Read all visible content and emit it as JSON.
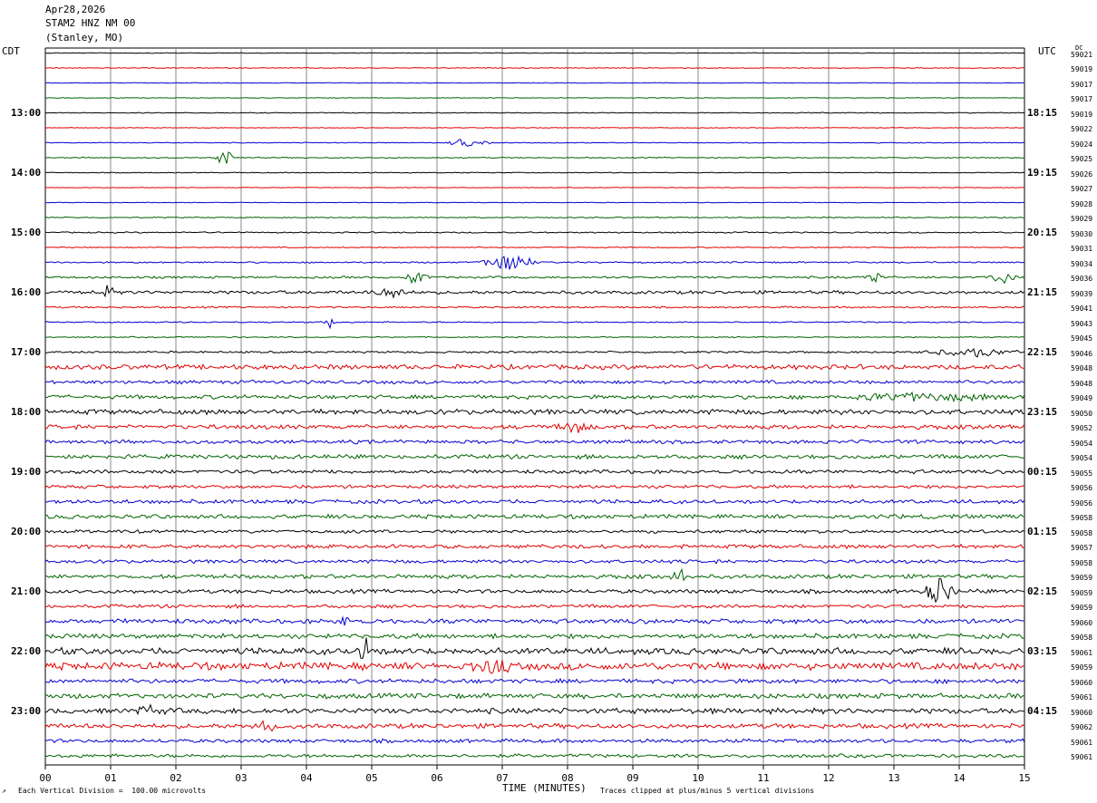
{
  "header": {
    "date": "Apr28,2026",
    "station": "STAM2 HNZ NM 00",
    "location": "(Stanley, MO)"
  },
  "left_zone": "CDT",
  "right_zone": "UTC",
  "dc_label": "DC",
  "footer": {
    "scale_note": "Each Vertical Division =  100.00 microvolts",
    "clip_note": "Traces clipped at plus/minus 5 vertical divisions",
    "corner_mark": "↗"
  },
  "chart_data": {
    "type": "line",
    "title": "",
    "xlabel": "TIME (MINUTES)",
    "xlim": [
      0,
      15
    ],
    "x_ticks": [
      "00",
      "01",
      "02",
      "03",
      "04",
      "05",
      "06",
      "07",
      "08",
      "09",
      "10",
      "11",
      "12",
      "13",
      "14",
      "15"
    ],
    "row_minutes": 15,
    "rows": 48,
    "trace_colors": [
      "#000000",
      "#e00000",
      "#0000d0",
      "#006400"
    ],
    "left_hour_labels": [
      "13:00",
      "14:00",
      "15:00",
      "16:00",
      "17:00",
      "18:00",
      "19:00",
      "20:00",
      "21:00",
      "22:00",
      "23:00"
    ],
    "right_hour_labels": [
      "18:15",
      "19:15",
      "20:15",
      "21:15",
      "22:15",
      "23:15",
      "00:15",
      "01:15",
      "02:15",
      "03:15",
      "04:15"
    ],
    "dc_offsets": [
      "59021",
      "59019",
      "59017",
      "59017",
      "59019",
      "59022",
      "59024",
      "59025",
      "59026",
      "59027",
      "59028",
      "59029",
      "59030",
      "59031",
      "59034",
      "59036",
      "59039",
      "59041",
      "59043",
      "59045",
      "59046",
      "59048",
      "59048",
      "59049",
      "59050",
      "59052",
      "59054",
      "59054",
      "59055",
      "59056",
      "59056",
      "59058",
      "59058",
      "59057",
      "59058",
      "59059",
      "59059",
      "59059",
      "59060",
      "59058",
      "59061",
      "59059",
      "59060",
      "59061",
      "59060",
      "59062",
      "59061",
      "59061"
    ],
    "noise_levels": [
      0.3,
      0.4,
      0.3,
      0.3,
      0.4,
      0.3,
      0.4,
      0.5,
      0.4,
      0.3,
      0.3,
      0.5,
      0.6,
      0.5,
      0.7,
      1.0,
      1.5,
      0.8,
      0.6,
      0.5,
      0.9,
      2.2,
      1.6,
      1.8,
      2.3,
      2.0,
      1.7,
      1.9,
      1.7,
      1.6,
      1.8,
      1.9,
      1.5,
      1.8,
      1.6,
      1.9,
      1.8,
      1.6,
      2.1,
      2.2,
      3.0,
      3.4,
      2.0,
      2.3,
      2.5,
      2.2,
      1.7,
      1.6
    ],
    "events": [
      {
        "row": 6,
        "minute": 6.5,
        "amplitude": 8,
        "duration": 0.35
      },
      {
        "row": 7,
        "minute": 2.75,
        "amplitude": 14,
        "duration": 0.15
      },
      {
        "row": 14,
        "minute": 7.1,
        "amplitude": 12,
        "duration": 0.5
      },
      {
        "row": 15,
        "minute": 5.7,
        "amplitude": 12,
        "duration": 0.25
      },
      {
        "row": 15,
        "minute": 12.7,
        "amplitude": 10,
        "duration": 0.2
      },
      {
        "row": 15,
        "minute": 14.6,
        "amplitude": 10,
        "duration": 0.3
      },
      {
        "row": 16,
        "minute": 0.95,
        "amplitude": 14,
        "duration": 0.1
      },
      {
        "row": 16,
        "minute": 5.3,
        "amplitude": 8,
        "duration": 0.3
      },
      {
        "row": 18,
        "minute": 4.35,
        "amplitude": 9,
        "duration": 0.1
      },
      {
        "row": 20,
        "minute": 14.2,
        "amplitude": 6,
        "duration": 0.9
      },
      {
        "row": 23,
        "minute": 13.5,
        "amplitude": 5,
        "duration": 1.5
      },
      {
        "row": 25,
        "minute": 8.1,
        "amplitude": 7,
        "duration": 0.3
      },
      {
        "row": 35,
        "minute": 9.7,
        "amplitude": 12,
        "duration": 0.15
      },
      {
        "row": 36,
        "minute": 13.7,
        "amplitude": 16,
        "duration": 0.3
      },
      {
        "row": 38,
        "minute": 4.6,
        "amplitude": 8,
        "duration": 0.1
      },
      {
        "row": 40,
        "minute": 4.9,
        "amplitude": 18,
        "duration": 0.12
      },
      {
        "row": 41,
        "minute": 6.8,
        "amplitude": 9,
        "duration": 0.4
      },
      {
        "row": 41,
        "minute": 4.9,
        "amplitude": 10,
        "duration": 0.1
      },
      {
        "row": 44,
        "minute": 1.6,
        "amplitude": 6,
        "duration": 0.3
      },
      {
        "row": 45,
        "minute": 3.4,
        "amplitude": 6,
        "duration": 0.3
      }
    ]
  }
}
